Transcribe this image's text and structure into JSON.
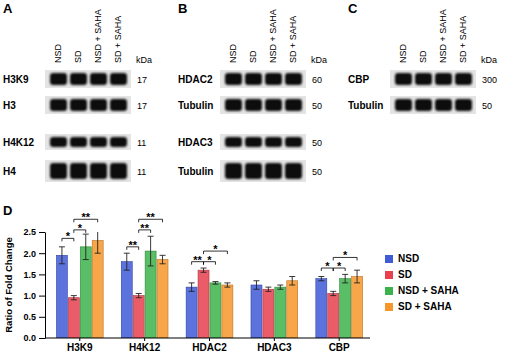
{
  "panel_labels": [
    "A",
    "B",
    "C",
    "D"
  ],
  "blots": [
    {
      "lanes": [
        "NSD",
        "SD",
        "NSD + SAHA",
        "SD + SAHA"
      ],
      "unit": "kDa",
      "rows": [
        {
          "label": "H3K9",
          "kda": 17
        },
        {
          "label": "H3",
          "kda": 17
        },
        {
          "label": "H4K12",
          "kda": 11
        },
        {
          "label": "H4",
          "kda": 11
        }
      ]
    },
    {
      "lanes": [
        "NSD",
        "SD",
        "NSD + SAHA",
        "SD + SAHA"
      ],
      "unit": "kDa",
      "rows": [
        {
          "label": "HDAC2",
          "kda": 60
        },
        {
          "label": "Tubulin",
          "kda": 50
        },
        {
          "label": "HDAC3",
          "kda": 50
        },
        {
          "label": "Tubulin",
          "kda": 50
        }
      ]
    },
    {
      "lanes": [
        "NSD",
        "SD",
        "NSD + SAHA",
        "SD + SAHA"
      ],
      "unit": "kDa",
      "rows": [
        {
          "label": "CBP",
          "kda": 300
        },
        {
          "label": "Tubulin",
          "kda": 50
        }
      ]
    }
  ],
  "chart_data": {
    "type": "bar",
    "y_label": "Ratio of Fold Change",
    "categories": [
      "H3K9",
      "H4K12",
      "HDAC2",
      "HDAC3",
      "CBP"
    ],
    "series": [
      {
        "name": "NSD",
        "color": "#3f5bd8",
        "values": [
          1.95,
          1.8,
          1.2,
          1.25,
          1.4
        ],
        "errors": [
          0.2,
          0.2,
          0.1,
          0.1,
          0.05
        ]
      },
      {
        "name": "SD",
        "color": "#e8404f",
        "values": [
          0.95,
          1.0,
          1.6,
          1.15,
          1.05
        ],
        "errors": [
          0.05,
          0.05,
          0.05,
          0.05,
          0.05
        ]
      },
      {
        "name": "NSD + SAHA",
        "color": "#3cb34a",
        "values": [
          2.15,
          2.05,
          1.3,
          1.2,
          1.4
        ],
        "errors": [
          0.3,
          0.35,
          0.03,
          0.05,
          0.1
        ]
      },
      {
        "name": "SD + SAHA",
        "color": "#f7962a",
        "values": [
          2.3,
          1.85,
          1.25,
          1.35,
          1.45
        ],
        "errors": [
          0.3,
          0.1,
          0.05,
          0.1,
          0.15
        ]
      }
    ],
    "ylim": [
      0,
      2.5
    ],
    "yticks": [
      {
        "value": 0,
        "label": "0.0"
      },
      {
        "value": 0.5,
        "label": "0.5"
      },
      {
        "value": 1,
        "label": "1.0"
      },
      {
        "value": 1.5,
        "label": "1.5"
      },
      {
        "value": 2,
        "label": "2.0"
      },
      {
        "value": 2.5,
        "label": "2.5"
      }
    ],
    "grid": false,
    "legend": "right",
    "annotations": [
      {
        "text": "*",
        "category": "H3K9",
        "groups": [
          "NSD",
          "SD"
        ],
        "y": 2.35
      },
      {
        "text": "*",
        "category": "H3K9",
        "groups": [
          "SD",
          "NSD + SAHA"
        ],
        "y": 2.55
      },
      {
        "text": "**",
        "category": "H3K9",
        "groups": [
          "SD",
          "SD + SAHA"
        ],
        "y": 2.8
      },
      {
        "text": "**",
        "category": "H4K12",
        "groups": [
          "NSD",
          "SD"
        ],
        "y": 2.15
      },
      {
        "text": "**",
        "category": "H4K12",
        "groups": [
          "SD",
          "NSD + SAHA"
        ],
        "y": 2.55
      },
      {
        "text": "**",
        "category": "H4K12",
        "groups": [
          "SD",
          "SD + SAHA"
        ],
        "y": 2.8
      },
      {
        "text": "**",
        "category": "HDAC2",
        "groups": [
          "NSD",
          "SD"
        ],
        "y": 1.8
      },
      {
        "text": "*",
        "category": "HDAC2",
        "groups": [
          "SD",
          "NSD + SAHA"
        ],
        "y": 1.8
      },
      {
        "text": "*",
        "category": "HDAC2",
        "groups": [
          "SD",
          "SD + SAHA"
        ],
        "y": 2.05
      },
      {
        "text": "*",
        "category": "CBP",
        "groups": [
          "NSD",
          "SD"
        ],
        "y": 1.65
      },
      {
        "text": "*",
        "category": "CBP",
        "groups": [
          "SD",
          "NSD + SAHA"
        ],
        "y": 1.65
      },
      {
        "text": "*",
        "category": "CBP",
        "groups": [
          "SD",
          "SD + SAHA"
        ],
        "y": 1.9
      }
    ]
  }
}
